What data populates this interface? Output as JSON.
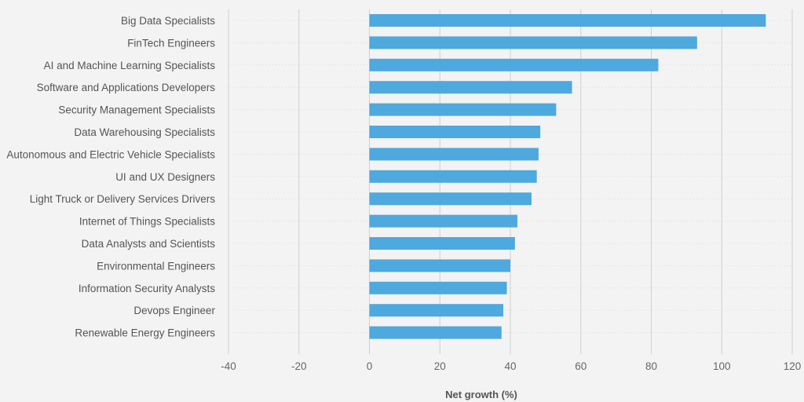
{
  "chart_data": {
    "type": "bar",
    "orientation": "horizontal",
    "categories": [
      "Big Data Specialists",
      "FinTech Engineers",
      "AI and Machine Learning Specialists",
      "Software and Applications Developers",
      "Security Management Specialists",
      "Data Warehousing Specialists",
      "Autonomous and Electric Vehicle Specialists",
      "UI and UX Designers",
      "Light Truck or Delivery Services Drivers",
      "Internet of Things Specialists",
      "Data Analysts and Scientists",
      "Environmental Engineers",
      "Information Security Analysts",
      "Devops Engineer",
      "Renewable Energy Engineers"
    ],
    "values": [
      112.5,
      93,
      82,
      57.5,
      53,
      48.5,
      48,
      47.5,
      46,
      42,
      41.3,
      40,
      39,
      38,
      37.5
    ],
    "xlabel": "Net growth (%)",
    "ylabel": "",
    "xlim": [
      -40,
      120
    ],
    "xticks": [
      -40,
      -20,
      0,
      20,
      40,
      60,
      80,
      100,
      120
    ],
    "grid": "vertical",
    "colors": {
      "bar": "#4ea9de",
      "background": "#f3f3f3",
      "grid": "#cfcfcf",
      "category_guide": "#dcdcdc"
    }
  }
}
